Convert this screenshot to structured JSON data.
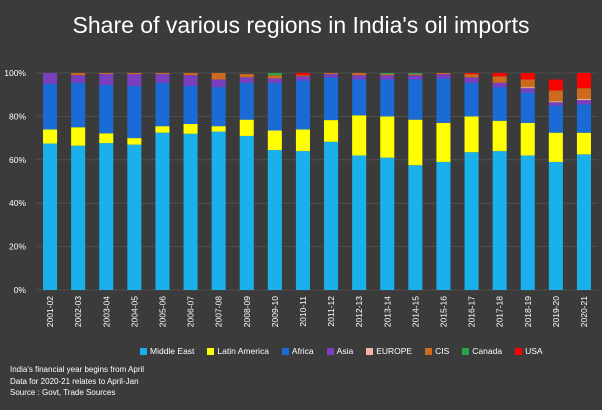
{
  "chart_data": {
    "type": "bar",
    "stacked": true,
    "title": "Share of various regions in India's oil imports",
    "y_ticks": [
      "0%",
      "20%",
      "40%",
      "60%",
      "80%",
      "100%"
    ],
    "ylim": [
      0,
      100
    ],
    "grid": true,
    "legend_position": "bottom",
    "categories": [
      "2001-02",
      "2002-03",
      "2003-04",
      "2004-05",
      "2005-06",
      "2006-07",
      "2007-08",
      "2008-09",
      "2009-10",
      "2010-11",
      "2011-12",
      "2012-13",
      "2013-14",
      "2014-15",
      "2015-16",
      "2016-17",
      "2017-18",
      "2018-19",
      "2019-20",
      "2020-21"
    ],
    "series": [
      {
        "name": "Middle East",
        "color": "#1ab0ec",
        "values": [
          67.5,
          66.5,
          67.7,
          67.0,
          72.5,
          72.0,
          73.0,
          71.0,
          64.5,
          64.0,
          68.3,
          62.0,
          61.0,
          57.5,
          59.0,
          63.5,
          64.0,
          62.0,
          59.0,
          62.5
        ]
      },
      {
        "name": "Latin America",
        "color": "#ffff00",
        "values": [
          6.5,
          8.5,
          4.5,
          3.0,
          3.0,
          4.5,
          2.5,
          7.5,
          9.0,
          10.0,
          10.0,
          18.5,
          19.0,
          21.0,
          18.0,
          16.5,
          14.0,
          15.0,
          13.5,
          10.0
        ]
      },
      {
        "name": "Africa",
        "color": "#1a6bd6",
        "values": [
          21.0,
          20.5,
          22.3,
          24.0,
          20.0,
          17.5,
          18.0,
          17.0,
          22.0,
          22.5,
          19.7,
          16.5,
          17.0,
          18.5,
          20.5,
          15.5,
          15.5,
          14.0,
          12.5,
          13.0
        ]
      },
      {
        "name": "Asia",
        "color": "#7a3fbf",
        "values": [
          5.0,
          3.5,
          5.0,
          5.5,
          4.0,
          5.0,
          3.5,
          2.5,
          2.0,
          2.0,
          1.5,
          2.0,
          2.0,
          2.0,
          2.0,
          2.5,
          2.0,
          2.0,
          1.5,
          2.0
        ]
      },
      {
        "name": "EUROPE",
        "color": "#f4b6a2",
        "values": [
          0,
          0,
          0,
          0,
          0,
          0,
          0,
          0,
          0,
          0,
          0,
          0,
          0,
          0,
          0,
          0,
          0,
          0.5,
          0.5,
          0.5
        ]
      },
      {
        "name": "CIS",
        "color": "#cc6a1f",
        "values": [
          0,
          1.0,
          0.5,
          0.5,
          0.5,
          1.0,
          3.0,
          1.5,
          1.5,
          0.5,
          0.5,
          1.0,
          0.5,
          0.5,
          0.5,
          1.5,
          3.0,
          3.5,
          5.0,
          5.0
        ]
      },
      {
        "name": "Canada",
        "color": "#22a84a",
        "values": [
          0,
          0,
          0,
          0,
          0,
          0,
          0,
          0,
          1.0,
          0,
          0,
          0,
          0.5,
          0.5,
          0,
          0,
          0,
          0,
          0,
          0
        ]
      },
      {
        "name": "USA",
        "color": "#ff0000",
        "values": [
          0,
          0,
          0,
          0,
          0,
          0,
          0,
          0,
          0,
          1.0,
          0,
          0,
          0,
          0,
          0,
          0.5,
          1.5,
          3.0,
          5.0,
          7.0
        ]
      }
    ]
  },
  "notes": [
    "India's financial year begins from April",
    "Data for 2020-21 relates to April-Jan",
    "Source : Govt, Trade Sources"
  ]
}
